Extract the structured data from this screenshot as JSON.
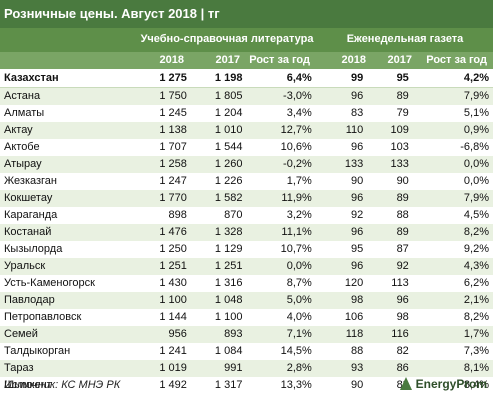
{
  "title": "Розничные цены. Август 2018 | тг",
  "groups": [
    "Учебно-справочная литература",
    "Еженедельная газета"
  ],
  "subheaders": [
    "2018",
    "2017",
    "Рост за год",
    "2018",
    "2017",
    "Рост за год"
  ],
  "source": "Источник: КС МНЭ РК",
  "logo_text": "EnergyProm",
  "chart_data": {
    "type": "table",
    "title": "Розничные цены. Август 2018 | тг",
    "columns": [
      "",
      "2018",
      "2017",
      "Рост за год",
      "2018",
      "2017",
      "Рост за год"
    ],
    "rows": [
      [
        "Казахстан",
        "1 275",
        "1 198",
        "6,4%",
        "99",
        "95",
        "4,2%"
      ],
      [
        "Астана",
        "1 750",
        "1 805",
        "-3,0%",
        "96",
        "89",
        "7,9%"
      ],
      [
        "Алматы",
        "1 245",
        "1 204",
        "3,4%",
        "83",
        "79",
        "5,1%"
      ],
      [
        "Актау",
        "1 138",
        "1 010",
        "12,7%",
        "110",
        "109",
        "0,9%"
      ],
      [
        "Актобе",
        "1 707",
        "1 544",
        "10,6%",
        "96",
        "103",
        "-6,8%"
      ],
      [
        "Атырау",
        "1 258",
        "1 260",
        "-0,2%",
        "133",
        "133",
        "0,0%"
      ],
      [
        "Жезказган",
        "1 247",
        "1 226",
        "1,7%",
        "90",
        "90",
        "0,0%"
      ],
      [
        "Кокшетау",
        "1 770",
        "1 582",
        "11,9%",
        "96",
        "89",
        "7,9%"
      ],
      [
        "Караганда",
        "898",
        "870",
        "3,2%",
        "92",
        "88",
        "4,5%"
      ],
      [
        "Костанай",
        "1 476",
        "1 328",
        "11,1%",
        "96",
        "89",
        "8,2%"
      ],
      [
        "Кызылорда",
        "1 250",
        "1 129",
        "10,7%",
        "95",
        "87",
        "9,2%"
      ],
      [
        "Уральск",
        "1 251",
        "1 251",
        "0,0%",
        "96",
        "92",
        "4,3%"
      ],
      [
        "Усть-Каменогорск",
        "1 430",
        "1 316",
        "8,7%",
        "120",
        "113",
        "6,2%"
      ],
      [
        "Павлодар",
        "1 100",
        "1 048",
        "5,0%",
        "98",
        "96",
        "2,1%"
      ],
      [
        "Петропавловск",
        "1 144",
        "1 100",
        "4,0%",
        "106",
        "98",
        "8,2%"
      ],
      [
        "Семей",
        "956",
        "893",
        "7,1%",
        "118",
        "116",
        "1,7%"
      ],
      [
        "Талдыкорган",
        "1 241",
        "1 084",
        "14,5%",
        "88",
        "82",
        "7,3%"
      ],
      [
        "Тараз",
        "1 019",
        "991",
        "2,8%",
        "93",
        "86",
        "8,1%"
      ],
      [
        "Шымкент",
        "1 492",
        "1 317",
        "13,3%",
        "90",
        "83",
        "8,4%"
      ]
    ]
  }
}
